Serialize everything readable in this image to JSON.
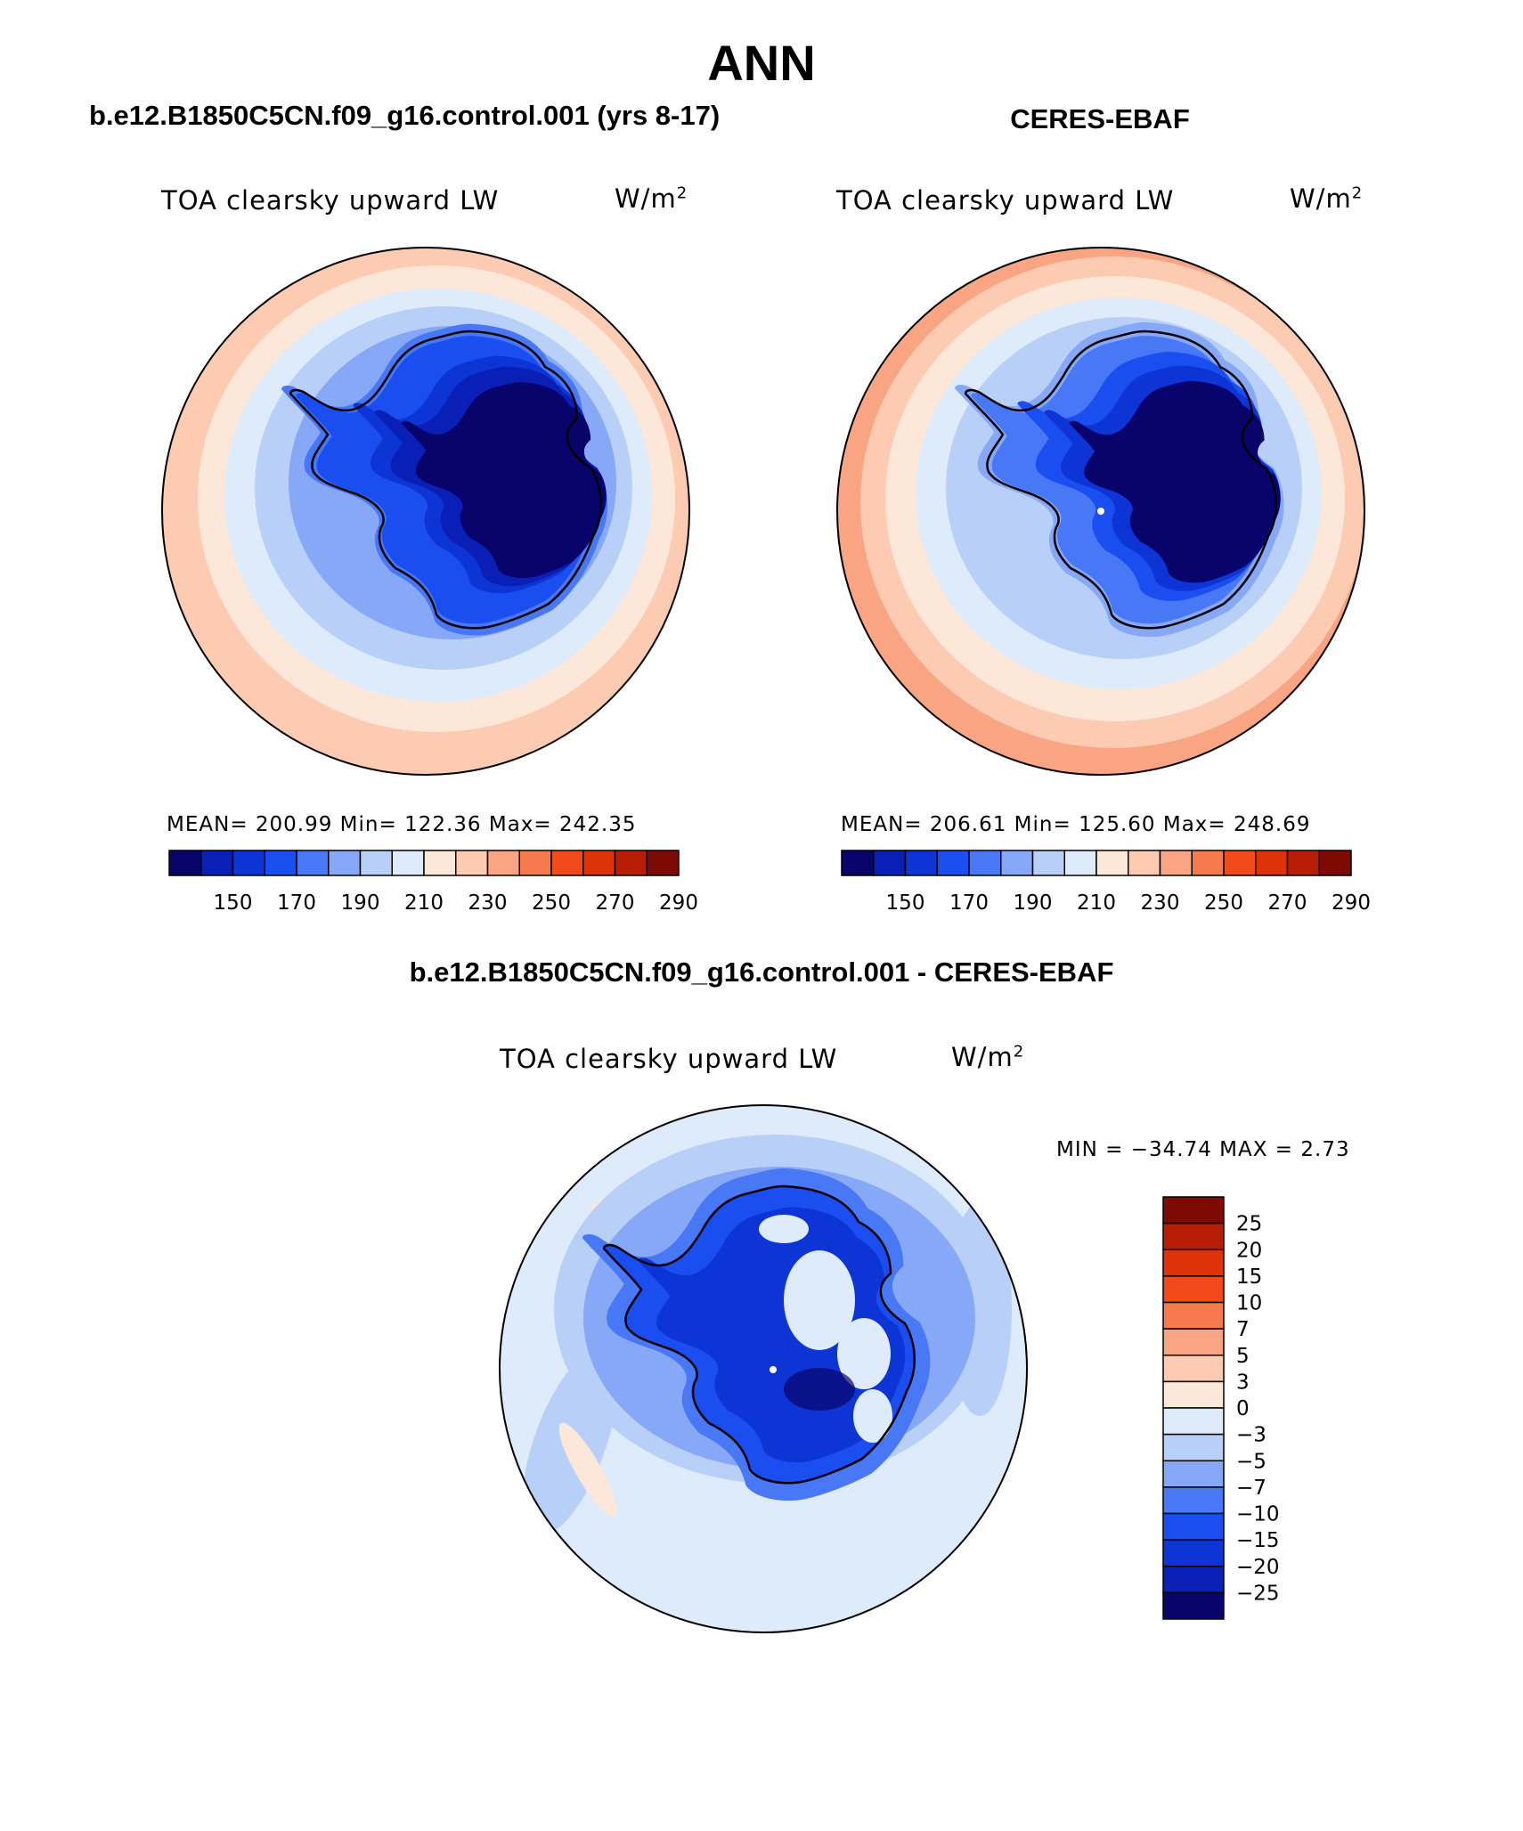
{
  "title": "ANN",
  "panels": [
    {
      "name": "model",
      "header": "b.e12.B1850C5CN.f09_g16.control.001 (yrs 8-17)",
      "variable": "TOA clearsky upward LW",
      "units": "W/m",
      "units_sup": "2",
      "stats_text": "MEAN= 200.99   Min= 122.36   Max= 242.35",
      "stats": {
        "mean": 200.99,
        "min": 122.36,
        "max": 242.35
      }
    },
    {
      "name": "obs",
      "header": "CERES-EBAF",
      "variable": "TOA clearsky upward LW",
      "units": "W/m",
      "units_sup": "2",
      "stats_text": "MEAN= 206.61   Min= 125.60   Max= 248.69",
      "stats": {
        "mean": 206.61,
        "min": 125.6,
        "max": 248.69
      }
    }
  ],
  "diff_panel": {
    "header": "b.e12.B1850C5CN.f09_g16.control.001 - CERES-EBAF",
    "variable": "TOA clearsky upward LW",
    "units": "W/m",
    "units_sup": "2",
    "minmax_text": "MIN = −34.74 MAX =    2.73",
    "stats": {
      "min": -34.74,
      "max": 2.73
    }
  },
  "colorbar_abs": {
    "tick_labels": [
      "150",
      "170",
      "190",
      "210",
      "230",
      "250",
      "270",
      "290"
    ],
    "colors": [
      "#08046b",
      "#0a1fb5",
      "#0d35d6",
      "#1a4ef0",
      "#4878f5",
      "#87a8f6",
      "#b8d0f8",
      "#ddebfb",
      "#fde7d8",
      "#fccbb1",
      "#f9a483",
      "#f77a4e",
      "#f24a1a",
      "#de3309",
      "#b81e07",
      "#7d0a05"
    ]
  },
  "colorbar_diff": {
    "tick_labels": [
      "25",
      "20",
      "15",
      "10",
      "7",
      "5",
      "3",
      "0",
      "−3",
      "−5",
      "−7",
      "−10",
      "−15",
      "−20",
      "−25"
    ],
    "colors": [
      "#7d0a05",
      "#b81e07",
      "#de3309",
      "#f24a1a",
      "#f77a4e",
      "#f9a483",
      "#fccbb1",
      "#fde7d8",
      "#ddebfb",
      "#b8d0f8",
      "#87a8f6",
      "#4878f5",
      "#1a4ef0",
      "#0d35d6",
      "#0a1fb5",
      "#08046b"
    ]
  }
}
